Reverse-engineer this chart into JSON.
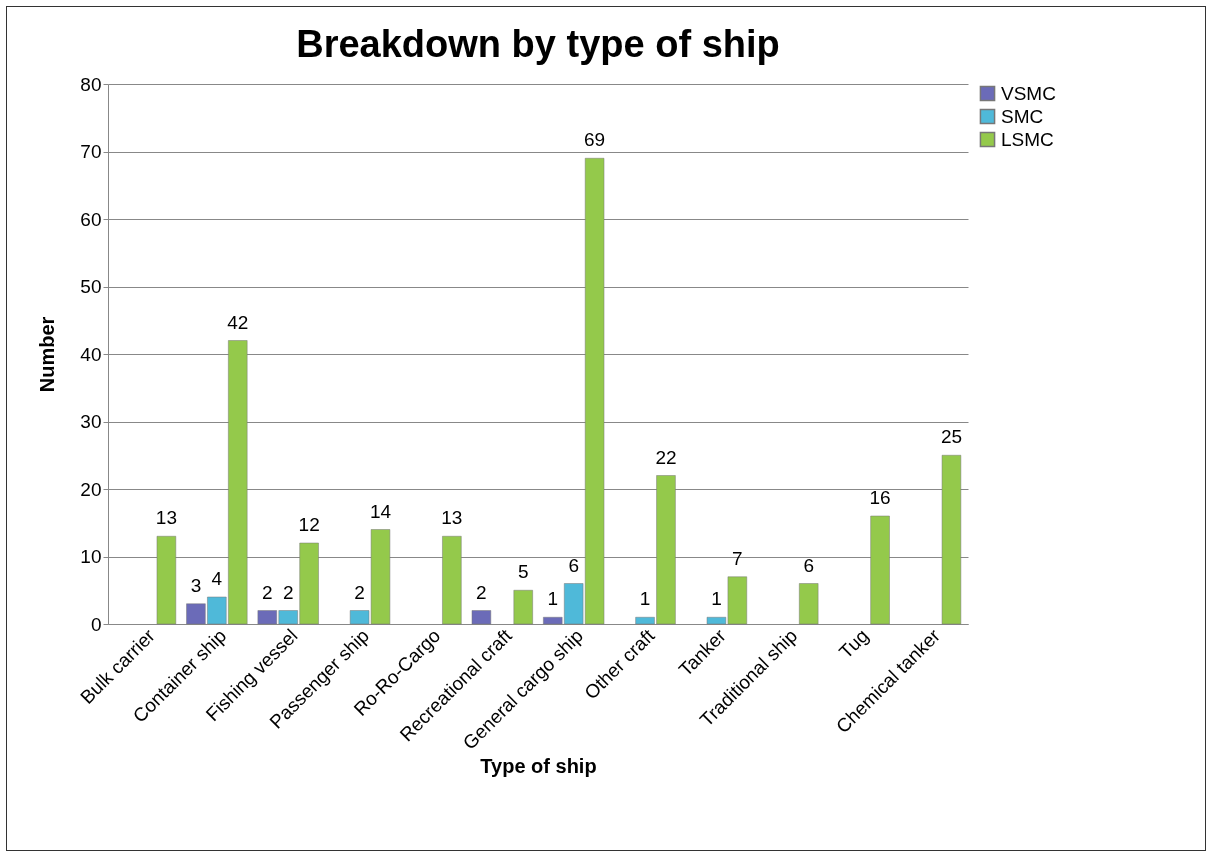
{
  "chart_data": {
    "type": "bar",
    "title": "Breakdown by type of ship",
    "xlabel": "Type of ship",
    "ylabel": "Number",
    "categories": [
      "Bulk carrier",
      "Container ship",
      "Fishing vessel",
      "Passenger ship",
      "Ro-Ro-Cargo",
      "Recreational craft",
      "General cargo ship",
      "Other craft",
      "Tanker",
      "Traditional ship",
      "Tug",
      "Chemical tanker"
    ],
    "series": [
      {
        "name": "VSMC",
        "color": "#6b6bb8",
        "values": [
          null,
          3,
          2,
          null,
          null,
          2,
          1,
          null,
          null,
          null,
          null,
          null
        ]
      },
      {
        "name": "SMC",
        "color": "#4fb9d9",
        "values": [
          null,
          4,
          2,
          2,
          null,
          null,
          6,
          1,
          1,
          null,
          null,
          null
        ]
      },
      {
        "name": "LSMC",
        "color": "#94c94b",
        "values": [
          13,
          42,
          12,
          14,
          13,
          5,
          69,
          22,
          7,
          6,
          16,
          25
        ]
      }
    ],
    "ylim": [
      0,
      80
    ],
    "yticks": [
      0,
      10,
      20,
      30,
      40,
      50,
      60,
      70,
      80
    ],
    "grid": "y",
    "legend": "right",
    "data_labels": true
  }
}
